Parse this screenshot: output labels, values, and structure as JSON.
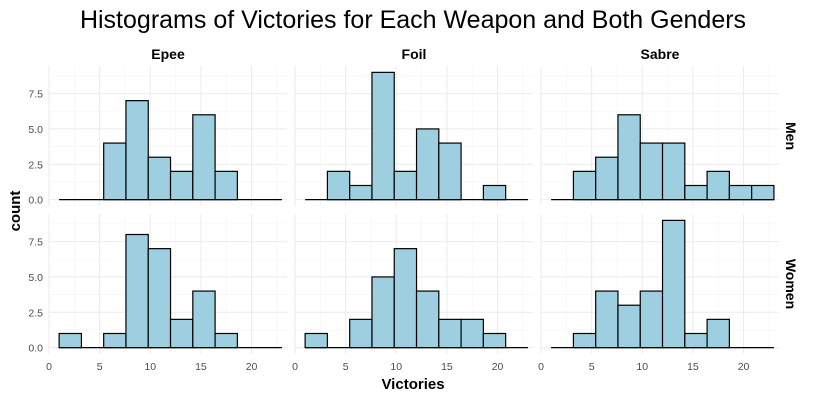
{
  "chart_data": {
    "type": "bar",
    "title": "Histograms of Victories for Each Weapon and Both Genders",
    "xlabel": "Victories",
    "ylabel": "count",
    "columns": [
      "Epee",
      "Foil",
      "Sabre"
    ],
    "rows": [
      "Men",
      "Women"
    ],
    "bin_edges": [
      1,
      3.2,
      5.4,
      7.6,
      9.8,
      12,
      14.2,
      16.4,
      18.6,
      20.8,
      23
    ],
    "xlim": [
      0,
      23.5
    ],
    "ylim": [
      -0.45,
      9.45
    ],
    "x_ticks": [
      0,
      5,
      10,
      15,
      20
    ],
    "y_ticks": [
      0.0,
      2.5,
      5.0,
      7.5
    ],
    "y_tick_labels": [
      "0.0",
      "2.5",
      "5.0",
      "7.5"
    ],
    "grid": true,
    "bar_fill": "#9ecfe0",
    "bar_stroke": "#000000",
    "panels": [
      {
        "row": "Men",
        "column": "Epee",
        "counts": [
          0,
          0,
          4,
          7,
          3,
          2,
          6,
          2,
          0,
          0
        ]
      },
      {
        "row": "Men",
        "column": "Foil",
        "counts": [
          0,
          2,
          1,
          9,
          2,
          5,
          4,
          0,
          1,
          0
        ]
      },
      {
        "row": "Men",
        "column": "Sabre",
        "counts": [
          0,
          2,
          3,
          6,
          4,
          4,
          1,
          2,
          1,
          1
        ]
      },
      {
        "row": "Women",
        "column": "Epee",
        "counts": [
          1,
          0,
          1,
          8,
          7,
          2,
          4,
          1,
          0,
          0
        ]
      },
      {
        "row": "Women",
        "column": "Foil",
        "counts": [
          1,
          0,
          2,
          5,
          7,
          4,
          2,
          2,
          1,
          0
        ]
      },
      {
        "row": "Women",
        "column": "Sabre",
        "counts": [
          0,
          1,
          4,
          3,
          4,
          9,
          1,
          2,
          0,
          0
        ]
      }
    ]
  }
}
